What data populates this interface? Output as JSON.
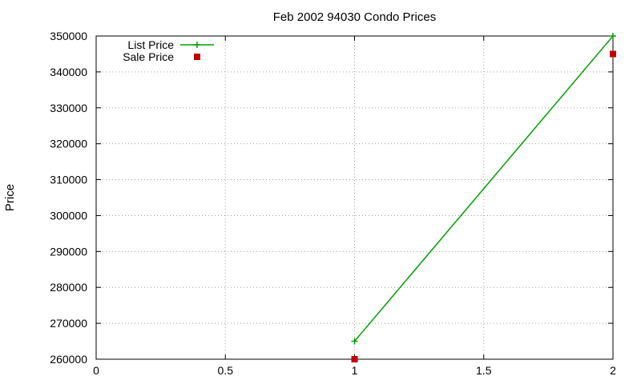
{
  "chart_data": {
    "type": "line",
    "title": "Feb 2002 94030 Condo Prices",
    "xlabel": "",
    "ylabel": "Price",
    "xlim": [
      0,
      2
    ],
    "ylim": [
      260000,
      350000
    ],
    "x_ticks": [
      "0",
      "0.5",
      "1",
      "1.5",
      "2"
    ],
    "y_ticks": [
      "260000",
      "270000",
      "280000",
      "290000",
      "300000",
      "310000",
      "320000",
      "330000",
      "340000",
      "350000"
    ],
    "grid": true,
    "legend_position": "top-left",
    "series": [
      {
        "name": "List Price",
        "style": "linespoints",
        "marker": "plus",
        "color": "#00a000",
        "points": [
          {
            "x": 1,
            "y": 265000
          },
          {
            "x": 2,
            "y": 350000
          }
        ]
      },
      {
        "name": "Sale Price",
        "style": "points",
        "marker": "square",
        "color": "#c00000",
        "points": [
          {
            "x": 1,
            "y": 260000
          },
          {
            "x": 2,
            "y": 345000
          }
        ]
      }
    ]
  }
}
